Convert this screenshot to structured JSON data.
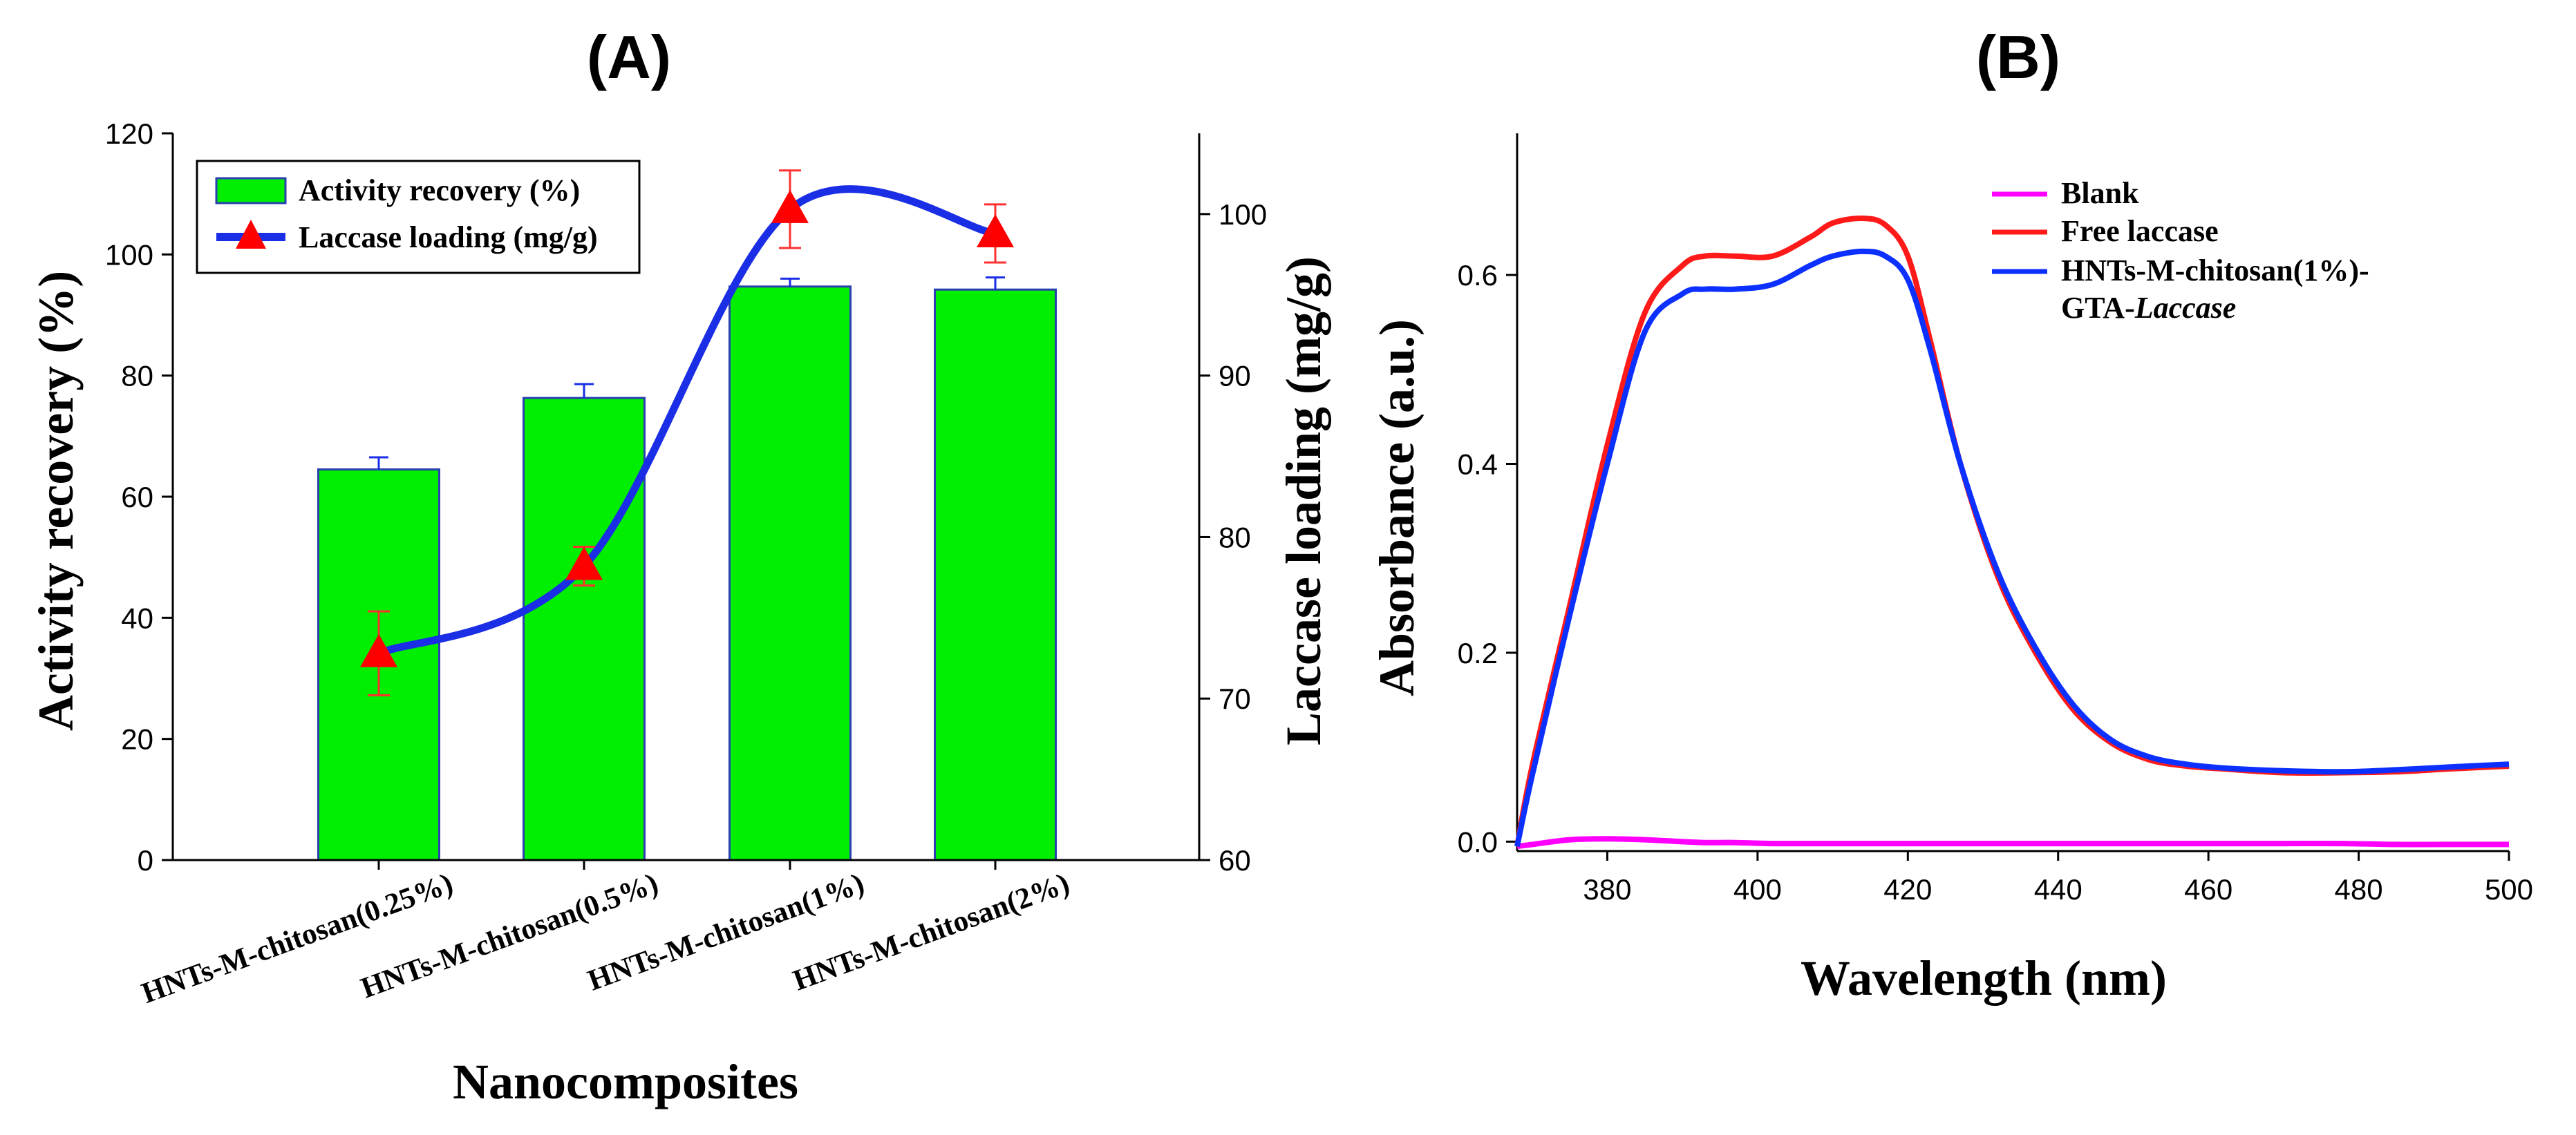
{
  "colors": {
    "bar_fill": "#00ee00",
    "bar_edge": "#2a3fb0",
    "loading_line": "#1a2ee6",
    "marker": "#ff0000",
    "error_bar_loading": "#ff3030",
    "error_bar_activity": "#1a2ee6",
    "blank": "#ff00ff",
    "free": "#ff1a1a",
    "hnts": "#0b30ff",
    "axis": "#000000"
  },
  "chart_data": [
    {
      "panel": "(A)",
      "type": "bar",
      "xlabel": "Nanocomposites",
      "ylabel": "Activity recovery (%)",
      "ylabel_right": "Laccase loading (mg/g)",
      "ylim": [
        0,
        120
      ],
      "yticks": [
        "0",
        "20",
        "40",
        "60",
        "80",
        "100",
        "120"
      ],
      "ylim_right": [
        60,
        105
      ],
      "yticks_right": [
        "60",
        "70",
        "80",
        "90",
        "100"
      ],
      "categories": [
        "HNTs-M-chitosan(0.25%)",
        "HNTs-M-chitosan(0.5%)",
        "HNTs-M-chitosan(1%)",
        "HNTs-M-chitosan(2%)"
      ],
      "series": [
        {
          "name": "Activity recovery (%)",
          "type": "bar",
          "axis": "left",
          "values": [
            64.5,
            76.3,
            94.7,
            94.2
          ],
          "errors": [
            2.0,
            2.3,
            1.3,
            2.0
          ]
        },
        {
          "name": "Laccase loading (mg/g)",
          "type": "line",
          "axis": "right",
          "values": [
            72.8,
            78.2,
            100.3,
            98.8
          ],
          "errors": [
            2.6,
            1.2,
            2.4,
            1.8
          ]
        }
      ],
      "legend": [
        "Activity recovery (%)",
        "Laccase loading (mg/g)"
      ],
      "legend_position": "top-left"
    },
    {
      "panel": "(B)",
      "type": "line",
      "xlabel": "Wavelength (nm)",
      "ylabel": "Absorbance (a.u.)",
      "xlim": [
        368,
        500
      ],
      "xticks": [
        "380",
        "400",
        "420",
        "440",
        "460",
        "480",
        "500"
      ],
      "ylim": [
        -0.01,
        0.75
      ],
      "yticks": [
        "0.0",
        "0.2",
        "0.4",
        "0.6"
      ],
      "legend_position": "top-right",
      "legend": [
        "Blank",
        "Free laccase",
        "HNTs-M-chitosan(1%)-",
        "GTA-",
        "Laccase"
      ],
      "x": [
        368,
        370,
        375,
        380,
        385,
        390,
        393,
        397,
        402,
        407,
        410,
        414,
        417,
        420,
        423,
        427,
        432,
        437,
        442,
        447,
        452,
        457,
        462,
        470,
        478,
        485,
        492,
        500
      ],
      "series": [
        {
          "name": "Blank",
          "values": [
            -0.005,
            -0.003,
            0.002,
            0.003,
            0.002,
            0.0,
            -0.001,
            -0.001,
            -0.002,
            -0.002,
            -0.002,
            -0.002,
            -0.002,
            -0.002,
            -0.002,
            -0.002,
            -0.002,
            -0.002,
            -0.002,
            -0.002,
            -0.002,
            -0.002,
            -0.002,
            -0.002,
            -0.002,
            -0.003,
            -0.003,
            -0.003
          ]
        },
        {
          "name": "Free laccase",
          "values": [
            -0.005,
            0.08,
            0.25,
            0.42,
            0.56,
            0.61,
            0.62,
            0.62,
            0.62,
            0.64,
            0.655,
            0.66,
            0.653,
            0.62,
            0.53,
            0.4,
            0.28,
            0.2,
            0.14,
            0.105,
            0.087,
            0.08,
            0.077,
            0.073,
            0.073,
            0.074,
            0.077,
            0.08
          ]
        },
        {
          "name": "HNTs-M-chitosan(1%)-GTA-Laccase",
          "values": [
            -0.005,
            0.07,
            0.24,
            0.4,
            0.54,
            0.58,
            0.585,
            0.585,
            0.59,
            0.61,
            0.62,
            0.625,
            0.62,
            0.595,
            0.52,
            0.4,
            0.285,
            0.205,
            0.145,
            0.108,
            0.09,
            0.082,
            0.078,
            0.075,
            0.074,
            0.076,
            0.079,
            0.082
          ]
        }
      ]
    }
  ]
}
